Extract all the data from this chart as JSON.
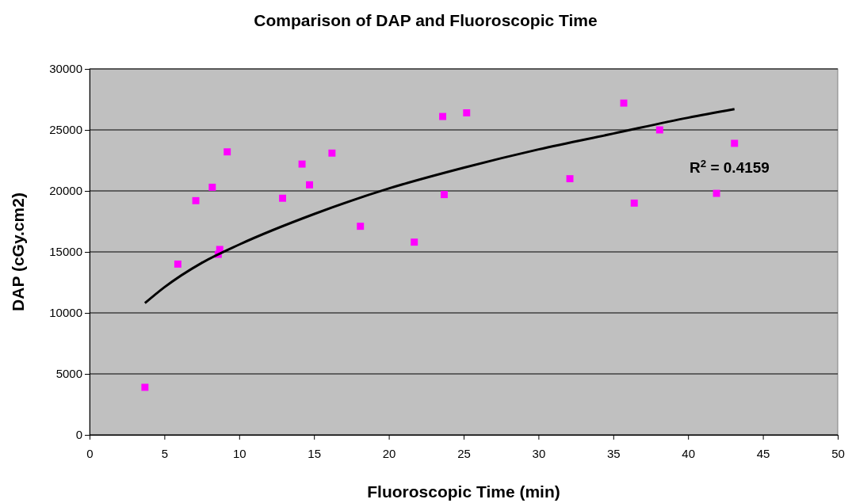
{
  "chart_data": {
    "type": "scatter",
    "title": "Comparison of DAP and Fluoroscopic Time",
    "xlabel": "Fluoroscopic Time (min)",
    "ylabel": "DAP (cGy.cm2)",
    "xlim": [
      0,
      50
    ],
    "xticks": [
      0,
      5,
      10,
      15,
      20,
      25,
      30,
      35,
      40,
      45,
      50
    ],
    "ylim": [
      0,
      30000
    ],
    "yticks": [
      0,
      5000,
      10000,
      15000,
      20000,
      25000,
      30000
    ],
    "grid": "y",
    "marker": "square",
    "annotations": [
      "R$^{2}$ = 0.4159"
    ],
    "series": [
      {
        "color": "#ff00ff",
        "x": [
          3.7,
          5.9,
          7.1,
          8.2,
          8.6,
          8.7,
          9.2,
          12.9,
          14.2,
          14.7,
          16.2,
          18.1,
          21.7,
          23.6,
          23.7,
          25.2,
          32.1,
          35.7,
          36.4,
          38.1,
          41.9,
          43.1
        ],
        "values": [
          3900,
          14000,
          19200,
          20300,
          14800,
          15200,
          23200,
          19400,
          22200,
          20500,
          23100,
          17100,
          15800,
          26100,
          19700,
          26400,
          21000,
          27200,
          19000,
          25000,
          19800,
          23900
        ]
      },
      {
        "type": "line",
        "color": "#000000",
        "marker": "none",
        "x": [
          3.7,
          5,
          7.5,
          10,
          15,
          20,
          25,
          30,
          35,
          40,
          43.1
        ],
        "values": [
          10800,
          12100,
          14100,
          15600,
          18100,
          20200,
          21900,
          23400,
          24700,
          26000,
          26700
        ]
      }
    ]
  }
}
